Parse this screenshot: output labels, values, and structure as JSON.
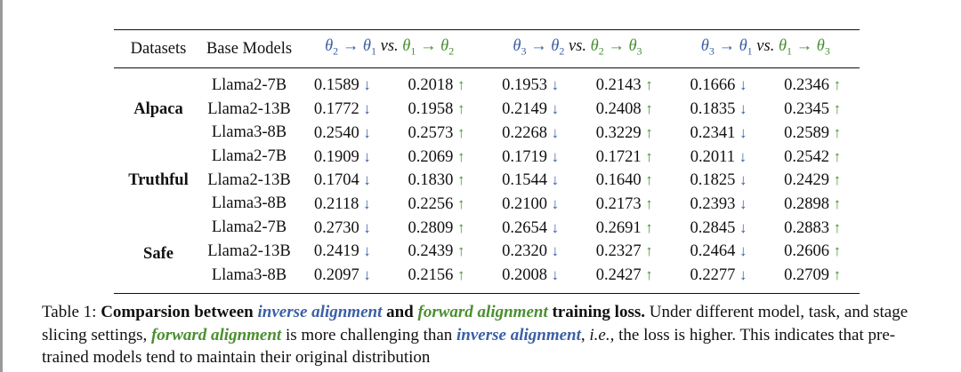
{
  "table": {
    "headers": {
      "datasets": "Datasets",
      "base_models": "Base Models",
      "groups": [
        {
          "inverse": "θ2 → θ1",
          "vs": "vs.",
          "forward": "θ1 → θ2"
        },
        {
          "inverse": "θ3 → θ2",
          "vs": "vs.",
          "forward": "θ2 → θ3"
        },
        {
          "inverse": "θ3 → θ1",
          "vs": "vs.",
          "forward": "θ1 → θ3"
        }
      ]
    },
    "arrows": {
      "down": "↓",
      "up": "↑"
    },
    "datasets": [
      {
        "name": "Alpaca",
        "rows": [
          {
            "model": "Llama2-7B",
            "values": [
              "0.1589",
              "0.2018",
              "0.1953",
              "0.2143",
              "0.1666",
              "0.2346"
            ]
          },
          {
            "model": "Llama2-13B",
            "values": [
              "0.1772",
              "0.1958",
              "0.2149",
              "0.2408",
              "0.1835",
              "0.2345"
            ]
          },
          {
            "model": "Llama3-8B",
            "values": [
              "0.2540",
              "0.2573",
              "0.2268",
              "0.3229",
              "0.2341",
              "0.2589"
            ]
          }
        ]
      },
      {
        "name": "Truthful",
        "rows": [
          {
            "model": "Llama2-7B",
            "values": [
              "0.1909",
              "0.2069",
              "0.1719",
              "0.1721",
              "0.2011",
              "0.2542"
            ]
          },
          {
            "model": "Llama2-13B",
            "values": [
              "0.1704",
              "0.1830",
              "0.1544",
              "0.1640",
              "0.1825",
              "0.2429"
            ]
          },
          {
            "model": "Llama3-8B",
            "values": [
              "0.2118",
              "0.2256",
              "0.2100",
              "0.2173",
              "0.2393",
              "0.2898"
            ]
          }
        ]
      },
      {
        "name": "Safe",
        "rows": [
          {
            "model": "Llama2-7B",
            "values": [
              "0.2730",
              "0.2809",
              "0.2654",
              "0.2691",
              "0.2845",
              "0.2883"
            ]
          },
          {
            "model": "Llama2-13B",
            "values": [
              "0.2419",
              "0.2439",
              "0.2320",
              "0.2327",
              "0.2464",
              "0.2606"
            ]
          },
          {
            "model": "Llama3-8B",
            "values": [
              "0.2097",
              "0.2156",
              "0.2008",
              "0.2427",
              "0.2277",
              "0.2709"
            ]
          }
        ]
      }
    ]
  },
  "caption": {
    "label": "Table 1: ",
    "bold_1": "Comparsion between ",
    "inverse": "inverse alignment",
    "bold_2": " and ",
    "forward": "forward alignment",
    "bold_3": " training loss.",
    "text_1": " Under different model, task, and stage slicing settings, ",
    "forward_2": "forward alignment",
    "text_2": " is more challenging than ",
    "inverse_2": "inverse alignment",
    "text_3": ", ",
    "ie": "i.e.,",
    "text_4": " the loss is higher. This indicates that pre-trained models tend to maintain their original distribution"
  },
  "colors": {
    "inverse": "#3b5fa6",
    "forward": "#4a8f30"
  }
}
